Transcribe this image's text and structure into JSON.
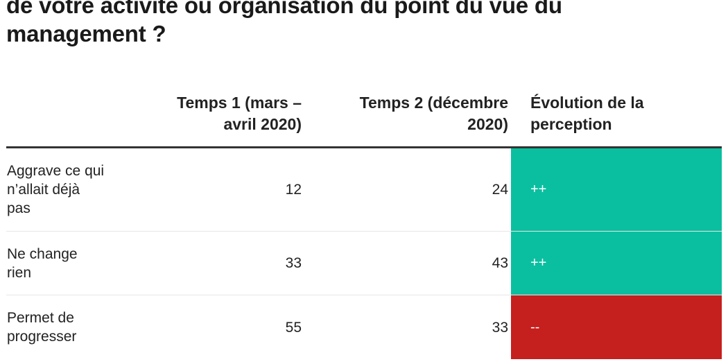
{
  "title": {
    "line1": "de votre activité ou organisation du point du vue du",
    "line2": "management ?"
  },
  "colors": {
    "increase": "#0abf9f",
    "decrease": "#c51f1e"
  },
  "chart_data": {
    "type": "table",
    "columns": [
      "",
      "Temps 1 (mars – avril 2020)",
      "Temps 2 (décembre 2020)",
      "Évolution de la perception"
    ],
    "header": {
      "col1_line1": "Temps 1 (mars –",
      "col1_line2": "avril 2020)",
      "col2_line1": "Temps 2 (décembre",
      "col2_line2": "2020)",
      "col3_line1": "Évolution de la",
      "col3_line2": "perception"
    },
    "rows": [
      {
        "label_lines": [
          "Aggrave ce qui",
          "n’allait déjà",
          "pas"
        ],
        "temps1": "12",
        "temps2": "24",
        "evolution": "++",
        "color": "#0abf9f"
      },
      {
        "label_lines": [
          "Ne change",
          "rien"
        ],
        "temps1": "33",
        "temps2": "43",
        "evolution": "++",
        "color": "#0abf9f"
      },
      {
        "label_lines": [
          "Permet de",
          "progresser"
        ],
        "temps1": "55",
        "temps2": "33",
        "evolution": "--",
        "color": "#c51f1e"
      }
    ]
  }
}
